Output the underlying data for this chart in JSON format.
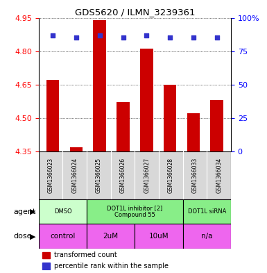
{
  "title": "GDS5620 / ILMN_3239361",
  "samples": [
    "GSM1366023",
    "GSM1366024",
    "GSM1366025",
    "GSM1366026",
    "GSM1366027",
    "GSM1366028",
    "GSM1366033",
    "GSM1366034"
  ],
  "bar_values": [
    4.67,
    4.37,
    4.94,
    4.57,
    4.81,
    4.65,
    4.52,
    4.58
  ],
  "percentile_values": [
    87,
    85,
    87,
    85,
    87,
    85,
    85,
    85
  ],
  "ylim_left": [
    4.35,
    4.95
  ],
  "ylim_right": [
    0,
    100
  ],
  "yticks_left": [
    4.35,
    4.5,
    4.65,
    4.8,
    4.95
  ],
  "yticks_right": [
    0,
    25,
    50,
    75,
    100
  ],
  "bar_color": "#cc0000",
  "dot_color": "#3333cc",
  "agent_groups": [
    {
      "label": "DMSO",
      "start": 0,
      "end": 2,
      "color": "#ccffcc"
    },
    {
      "label": "DOT1L inhibitor [2]\nCompound 55",
      "start": 2,
      "end": 6,
      "color": "#88ee88"
    },
    {
      "label": "DOT1L siRNA",
      "start": 6,
      "end": 8,
      "color": "#88ee88"
    }
  ],
  "dose_groups": [
    {
      "label": "control",
      "start": 0,
      "end": 2
    },
    {
      "label": "2uM",
      "start": 2,
      "end": 4
    },
    {
      "label": "10uM",
      "start": 4,
      "end": 6
    },
    {
      "label": "n/a",
      "start": 6,
      "end": 8
    }
  ],
  "dose_color": "#ee66ee",
  "legend_items": [
    {
      "color": "#cc0000",
      "label": "transformed count"
    },
    {
      "color": "#3333cc",
      "label": "percentile rank within the sample"
    }
  ],
  "agent_label": "agent",
  "dose_label": "dose",
  "sample_bg": "#d8d8d8"
}
